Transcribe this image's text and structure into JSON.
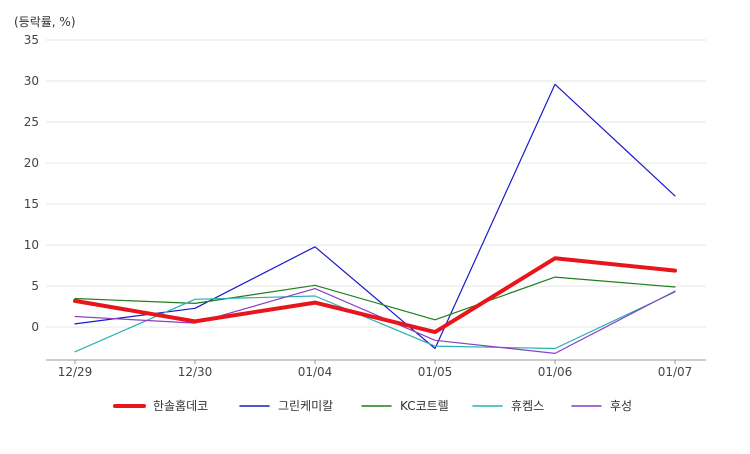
{
  "chart_data": {
    "type": "line",
    "unit_label": "(등락률, %)",
    "categories": [
      "12/29",
      "12/30",
      "01/04",
      "01/05",
      "01/06",
      "01/07"
    ],
    "y_ticks": [
      0,
      5,
      10,
      15,
      20,
      25,
      30,
      35
    ],
    "ylim": [
      -4,
      35
    ],
    "grid": true,
    "legend_position": "bottom",
    "series": [
      {
        "name": "한솔홈데코",
        "color": "#e8151c",
        "emphasis": true,
        "values": [
          3.2,
          0.7,
          3.0,
          -0.6,
          8.4,
          6.9
        ]
      },
      {
        "name": "그린케미칼",
        "color": "#1a1acc",
        "emphasis": false,
        "values": [
          0.4,
          2.3,
          9.8,
          -2.6,
          29.6,
          16.0
        ]
      },
      {
        "name": "KC코트렐",
        "color": "#1f7f1f",
        "emphasis": false,
        "values": [
          3.5,
          2.9,
          5.1,
          0.9,
          6.1,
          4.9
        ]
      },
      {
        "name": "휴켐스",
        "color": "#2ab0b0",
        "emphasis": false,
        "values": [
          -3.0,
          3.4,
          3.8,
          -2.3,
          -2.6,
          4.3
        ]
      },
      {
        "name": "후성",
        "color": "#8a3fc4",
        "emphasis": false,
        "values": [
          1.3,
          0.5,
          4.7,
          -1.6,
          -3.2,
          4.4
        ]
      }
    ]
  }
}
